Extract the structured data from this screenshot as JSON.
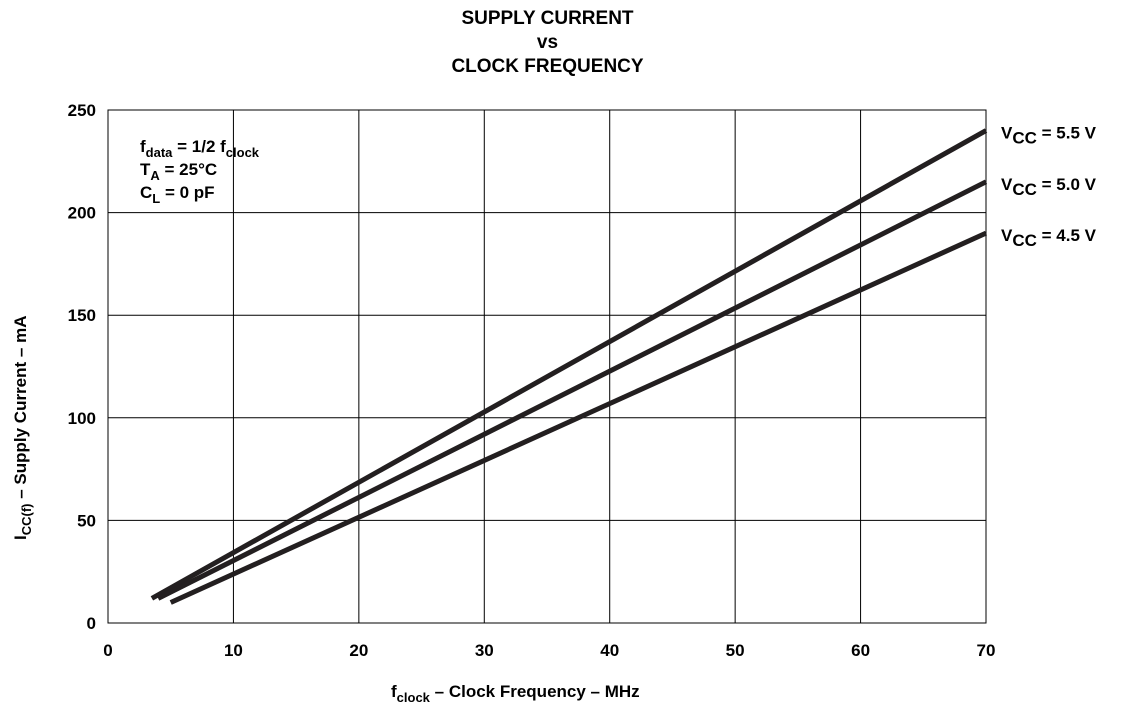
{
  "chart_data": {
    "type": "line",
    "title": [
      "SUPPLY CURRENT",
      "vs",
      "CLOCK FREQUENCY"
    ],
    "xlabel": {
      "main": "f",
      "sub": "clock",
      "rest": " – Clock Frequency – MHz"
    },
    "ylabel": {
      "main": "I",
      "sub": "CC(f)",
      "rest": "  – Supply Current – mA"
    },
    "xlim": [
      0,
      70
    ],
    "ylim": [
      0,
      250
    ],
    "xticks": [
      0,
      10,
      20,
      30,
      40,
      50,
      60,
      70
    ],
    "yticks": [
      0,
      50,
      100,
      150,
      200,
      250
    ],
    "grid": true,
    "annotations": [
      {
        "main": "f",
        "sub": "data",
        "rest": " = 1/2 f",
        "sub2": "clock"
      },
      {
        "main": "T",
        "sub": "A",
        "rest": " = 25°C"
      },
      {
        "main": "C",
        "sub": "L",
        "rest": " = 0 pF"
      }
    ],
    "series": [
      {
        "name": "V_CC = 5.5 V",
        "label_main": "V",
        "label_sub": "CC",
        "label_rest": " = 5.5 V",
        "x": [
          3.5,
          70
        ],
        "y": [
          12,
          240
        ]
      },
      {
        "name": "V_CC = 5.0 V",
        "label_main": "V",
        "label_sub": "CC",
        "label_rest": " = 5.0 V",
        "x": [
          4,
          70
        ],
        "y": [
          12,
          215
        ]
      },
      {
        "name": "V_CC = 4.5 V",
        "label_main": "V",
        "label_sub": "CC",
        "label_rest": " = 4.5 V",
        "x": [
          5,
          70
        ],
        "y": [
          10,
          190
        ]
      }
    ],
    "line_color": "#231f20"
  }
}
